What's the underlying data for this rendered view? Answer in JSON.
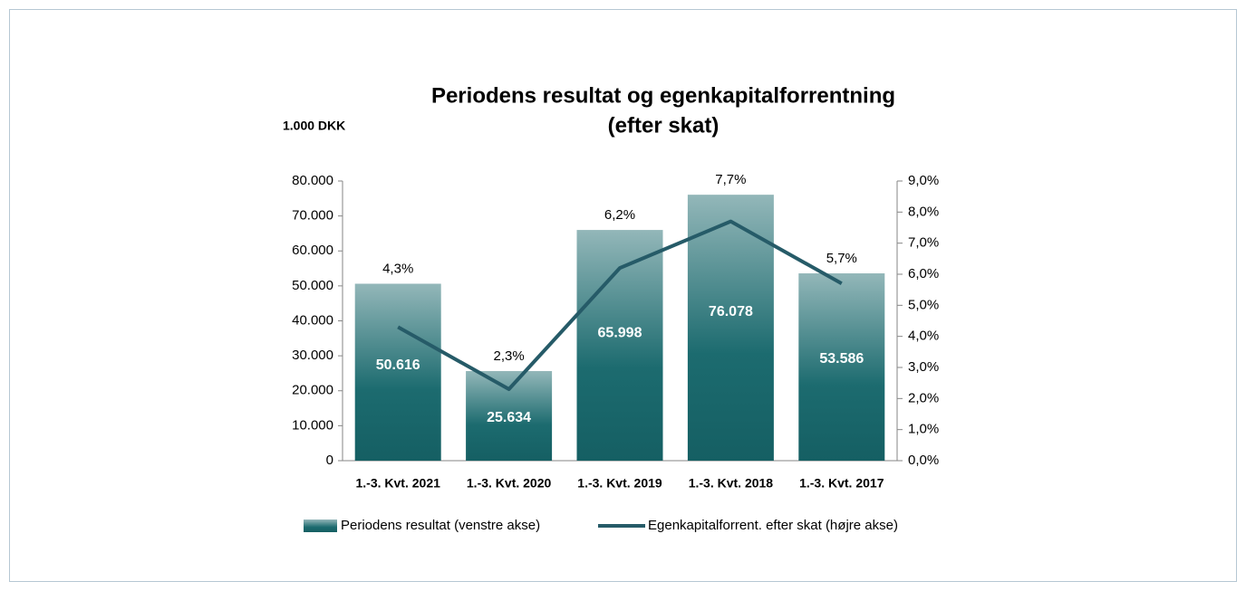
{
  "chart_data": {
    "type": "bar",
    "title": [
      "Periodens resultat og egenkapitalforrentning",
      "(efter skat)"
    ],
    "y_label": "1.000 DKK",
    "categories": [
      "1.-3. Kvt. 2021",
      "1.-3. Kvt. 2020",
      "1.-3. Kvt. 2019",
      "1.-3. Kvt. 2018",
      "1.-3. Kvt. 2017"
    ],
    "series": [
      {
        "name": "Periodens resultat (venstre akse)",
        "type": "bar",
        "color": "#1b6a6e",
        "values": [
          50616,
          25634,
          65998,
          76078,
          53586
        ],
        "value_labels": [
          "50.616",
          "25.634",
          "65.998",
          "76.078",
          "53.586"
        ]
      },
      {
        "name": "Egenkapitalforrent. efter skat (højre akse)",
        "type": "line",
        "axis": "y2",
        "color": "#265b68",
        "values": [
          4.3,
          2.3,
          6.2,
          7.7,
          5.7
        ],
        "value_labels": [
          "4,3%",
          "2,3%",
          "6,2%",
          "7,7%",
          "5,7%"
        ]
      }
    ],
    "ylim": [
      0,
      80000
    ],
    "yticks": [
      0,
      {
        "value": 10000,
        "label": "10.000"
      },
      {
        "value": 20000,
        "label": "20.000"
      },
      {
        "value": 30000,
        "label": "30.000"
      },
      {
        "value": 40000,
        "label": "40.000"
      },
      {
        "value": 50000,
        "label": "50.000"
      },
      {
        "value": 60000,
        "label": "60.000"
      },
      {
        "value": 70000,
        "label": "70.000"
      },
      {
        "value": 80000,
        "label": "80.000"
      }
    ],
    "y2lim": [
      0,
      9
    ],
    "y2ticks": [
      {
        "value": 0,
        "label": "0,0%"
      },
      {
        "value": 1,
        "label": "1,0%"
      },
      {
        "value": 2,
        "label": "2,0%"
      },
      {
        "value": 3,
        "label": "3,0%"
      },
      {
        "value": 4,
        "label": "4,0%"
      },
      {
        "value": 5,
        "label": "5,0%"
      },
      {
        "value": 6,
        "label": "6,0%"
      },
      {
        "value": 7,
        "label": "7,0%"
      },
      {
        "value": 8,
        "label": "8,0%"
      },
      {
        "value": 9,
        "label": "9,0%"
      }
    ],
    "grid": false,
    "legend": "bottom"
  }
}
